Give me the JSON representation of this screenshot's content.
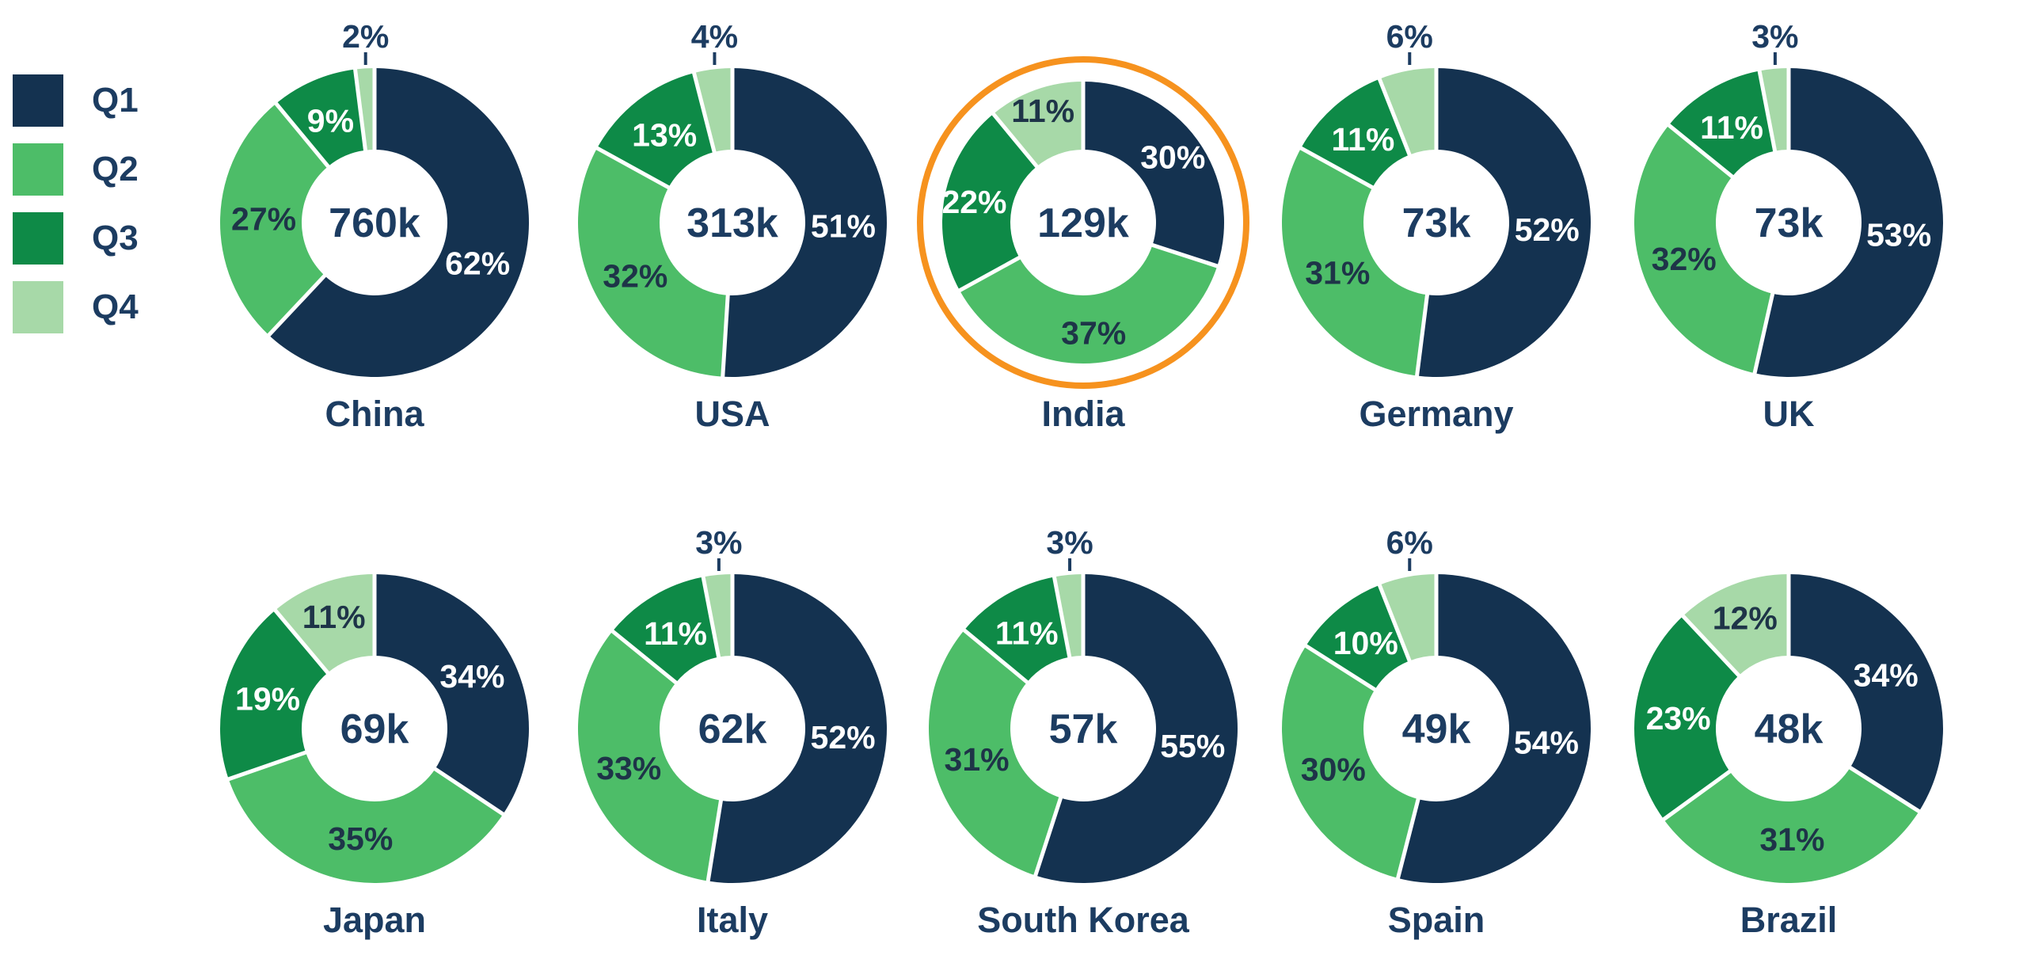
{
  "legend": {
    "position": "top-left",
    "items": [
      {
        "label": "Q1",
        "color": "#143250"
      },
      {
        "label": "Q2",
        "color": "#4dbd68"
      },
      {
        "label": "Q3",
        "color": "#0e8a47"
      },
      {
        "label": "Q4",
        "color": "#a7d9a8"
      }
    ]
  },
  "colors": {
    "slice_colors": [
      "#143250",
      "#4dbd68",
      "#0e8a47",
      "#a7d9a8"
    ],
    "label_on_slice": [
      "#ffffff",
      "#1e3448",
      "#ffffff",
      "#1e3448"
    ],
    "text_navy": "#1c3c61",
    "highlight_ring": "#f6921e",
    "separator": "#ffffff",
    "background": "#ffffff"
  },
  "chart_data": {
    "type": "pie",
    "variant": "donut-small-multiples",
    "categories": [
      "Q1",
      "Q2",
      "Q3",
      "Q4"
    ],
    "unit": "%",
    "grid": "off",
    "legend_position": "top-left",
    "rows": 2,
    "columns": 5,
    "donuts": [
      {
        "country": "China",
        "center_total": "760k",
        "values": [
          62,
          27,
          9,
          2
        ],
        "highlighted": false
      },
      {
        "country": "USA",
        "center_total": "313k",
        "values": [
          51,
          32,
          13,
          4
        ],
        "highlighted": false
      },
      {
        "country": "India",
        "center_total": "129k",
        "values": [
          30,
          37,
          22,
          11
        ],
        "highlighted": true
      },
      {
        "country": "Germany",
        "center_total": "73k",
        "values": [
          52,
          31,
          11,
          6
        ],
        "highlighted": false
      },
      {
        "country": "UK",
        "center_total": "73k",
        "values": [
          53,
          32,
          11,
          3
        ],
        "highlighted": false
      },
      {
        "country": "Japan",
        "center_total": "69k",
        "values": [
          34,
          35,
          19,
          11
        ],
        "highlighted": false
      },
      {
        "country": "Italy",
        "center_total": "62k",
        "values": [
          52,
          33,
          11,
          3
        ],
        "highlighted": false
      },
      {
        "country": "South Korea",
        "center_total": "57k",
        "values": [
          55,
          31,
          11,
          3
        ],
        "highlighted": false
      },
      {
        "country": "Spain",
        "center_total": "49k",
        "values": [
          54,
          30,
          10,
          6
        ],
        "highlighted": false
      },
      {
        "country": "Brazil",
        "center_total": "48k",
        "values": [
          34,
          31,
          23,
          12
        ],
        "highlighted": false
      }
    ]
  }
}
